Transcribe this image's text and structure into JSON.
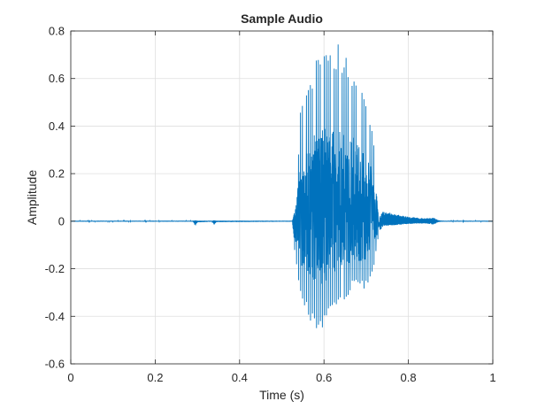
{
  "chart_data": {
    "type": "line",
    "title": "Sample Audio",
    "xlabel": "Time (s)",
    "ylabel": "Amplitude",
    "xlim": [
      0,
      1
    ],
    "ylim": [
      -0.6,
      0.8
    ],
    "xticks": [
      0,
      0.2,
      0.4,
      0.6,
      0.8,
      1
    ],
    "xtick_labels": [
      "0",
      "0.2",
      "0.4",
      "0.6",
      "0.8",
      "1"
    ],
    "yticks": [
      -0.6,
      -0.4,
      -0.2,
      0,
      0.2,
      0.4,
      0.6,
      0.8
    ],
    "ytick_labels": [
      "-0.6",
      "-0.4",
      "-0.2",
      "0",
      "0.2",
      "0.4",
      "0.6",
      "0.8"
    ],
    "grid": true,
    "line_color": "#0072BD",
    "series": [
      {
        "envelope_x": [
          0,
          0.29,
          0.295,
          0.3,
          0.335,
          0.34,
          0.345,
          0.525,
          0.53,
          0.535,
          0.545,
          0.56,
          0.575,
          0.59,
          0.605,
          0.615,
          0.625,
          0.64,
          0.655,
          0.67,
          0.685,
          0.7,
          0.715,
          0.725,
          0.73,
          0.74,
          0.76,
          0.78,
          0.8,
          0.82,
          0.84,
          0.86,
          0.87,
          0.88,
          1.0
        ],
        "upper": [
          0.002,
          0.002,
          0.004,
          0.002,
          0.002,
          0.004,
          0.002,
          0.002,
          0.04,
          0.16,
          0.52,
          0.58,
          0.66,
          0.72,
          0.73,
          0.74,
          0.75,
          0.74,
          0.7,
          0.66,
          0.58,
          0.5,
          0.42,
          0.2,
          0.02,
          0.04,
          0.035,
          0.025,
          0.02,
          0.015,
          0.012,
          0.015,
          0.005,
          0.002,
          0.002
        ],
        "lower": [
          -0.002,
          -0.002,
          -0.02,
          -0.005,
          -0.002,
          -0.015,
          -0.004,
          -0.002,
          -0.12,
          -0.2,
          -0.32,
          -0.4,
          -0.46,
          -0.48,
          -0.44,
          -0.4,
          -0.38,
          -0.36,
          -0.32,
          -0.28,
          -0.3,
          -0.28,
          -0.22,
          -0.12,
          -0.05,
          -0.02,
          -0.018,
          -0.015,
          -0.012,
          -0.01,
          -0.01,
          -0.014,
          -0.004,
          -0.002,
          -0.002
        ]
      }
    ]
  }
}
